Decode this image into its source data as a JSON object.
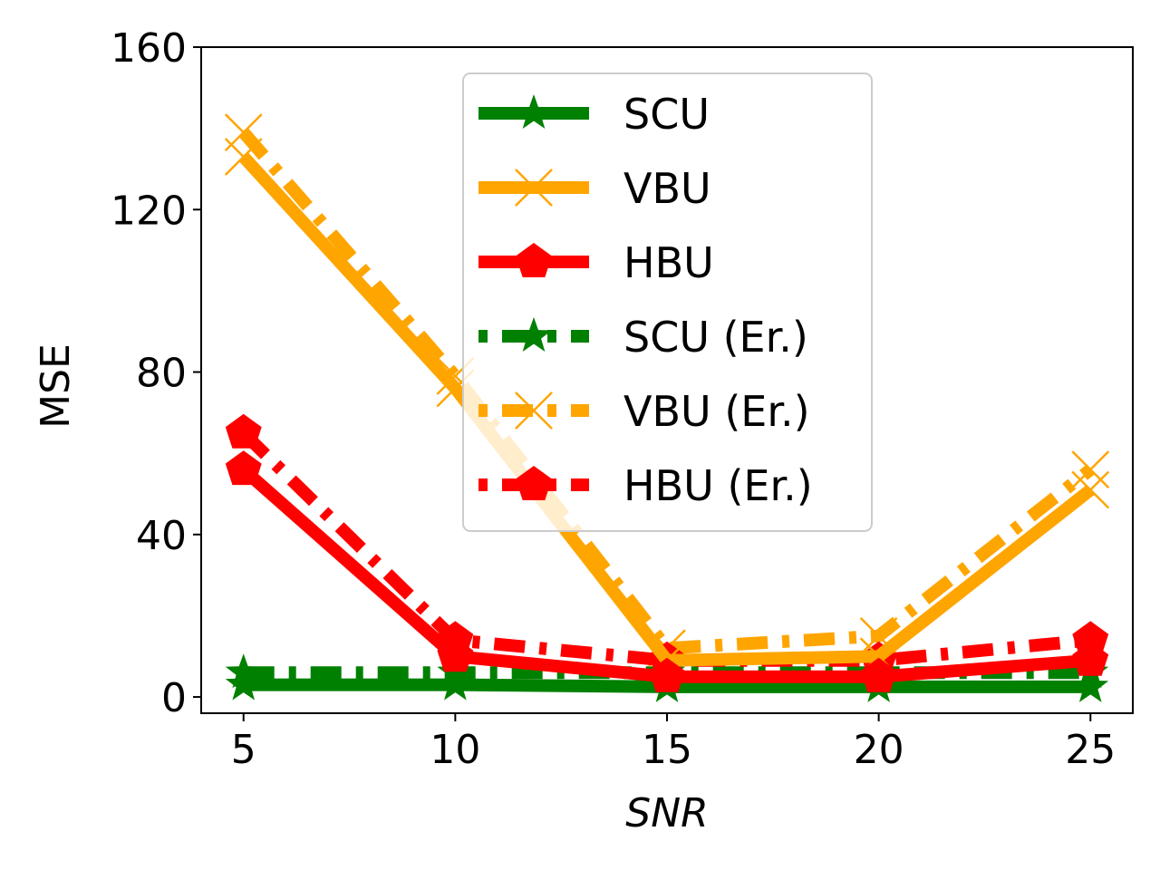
{
  "chart_data": {
    "type": "line",
    "x": [
      5,
      10,
      15,
      20,
      25
    ],
    "xlabel": "SNR",
    "ylabel": "MSE",
    "xticks": [
      "5",
      "10",
      "15",
      "20",
      "25"
    ],
    "yticks": [
      "0",
      "40",
      "80",
      "120",
      "160"
    ],
    "xlim": [
      4,
      26
    ],
    "ylim": [
      -4,
      160
    ],
    "grid": false,
    "legend_position": "top-center",
    "series": [
      {
        "name": "SCU",
        "values": [
          3,
          3,
          2.5,
          2.5,
          2.5
        ],
        "color": "#008000",
        "style": "solid",
        "marker": "star"
      },
      {
        "name": "VBU",
        "values": [
          133,
          76,
          9,
          10,
          51
        ],
        "color": "#FFA500",
        "style": "solid",
        "marker": "x"
      },
      {
        "name": "HBU",
        "values": [
          56,
          10,
          5,
          5,
          9
        ],
        "color": "#FF0000",
        "style": "solid",
        "marker": "pentagon"
      },
      {
        "name": "SCU (Er.)",
        "values": [
          6,
          6,
          6,
          6,
          6
        ],
        "color": "#008000",
        "style": "dashdot",
        "marker": "star"
      },
      {
        "name": "VBU (Er.)",
        "values": [
          139,
          79,
          12,
          15,
          56
        ],
        "color": "#FFA500",
        "style": "dashdot",
        "marker": "x"
      },
      {
        "name": "HBU (Er.)",
        "values": [
          65,
          14,
          9,
          9,
          14
        ],
        "color": "#FF0000",
        "style": "dashdot",
        "marker": "pentagon"
      }
    ]
  }
}
